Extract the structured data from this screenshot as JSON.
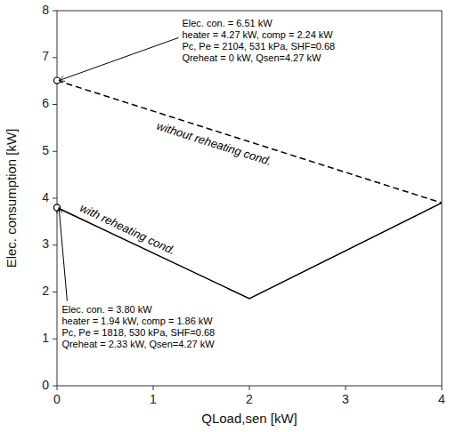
{
  "chart_data": {
    "type": "line",
    "xlabel": "QLoad,sen [kW]",
    "ylabel": "Elec. consumption [kW]",
    "xlim": [
      0,
      4
    ],
    "ylim": [
      0,
      8
    ],
    "xticks": [
      0,
      1,
      2,
      3,
      4
    ],
    "yticks": [
      0,
      1,
      2,
      3,
      4,
      5,
      6,
      7,
      8
    ],
    "grid": false,
    "series": [
      {
        "name": "without reheating cond.",
        "color": "#000000",
        "line_style": "dashed",
        "x": [
          0,
          4
        ],
        "values": [
          6.51,
          3.9
        ]
      },
      {
        "name": "with reheating cond.",
        "color": "#000000",
        "line_style": "solid",
        "x": [
          0,
          2,
          4
        ],
        "values": [
          3.8,
          1.86,
          3.9
        ]
      }
    ],
    "annotations": [
      {
        "text": "Elec. con. = 6.51 kW\nheater = 4.27 kW, comp = 2.24 kW\nPc, Pe = 2104, 531 kPa, SHF=0.68\nQreheat = 0 kW, Qsen=4.27 kW",
        "x": 0.02,
        "y": 6.51
      },
      {
        "text": "Elec. con. = 3.80 kW\nheater = 1.94 kW, comp = 1.86 kW\nPc, Pe = 1818, 530 kPa, SHF=0.68\nQreheat = 2.33 kW, Qsen=4.27 kW",
        "x": 0.02,
        "y": 3.8
      }
    ]
  }
}
